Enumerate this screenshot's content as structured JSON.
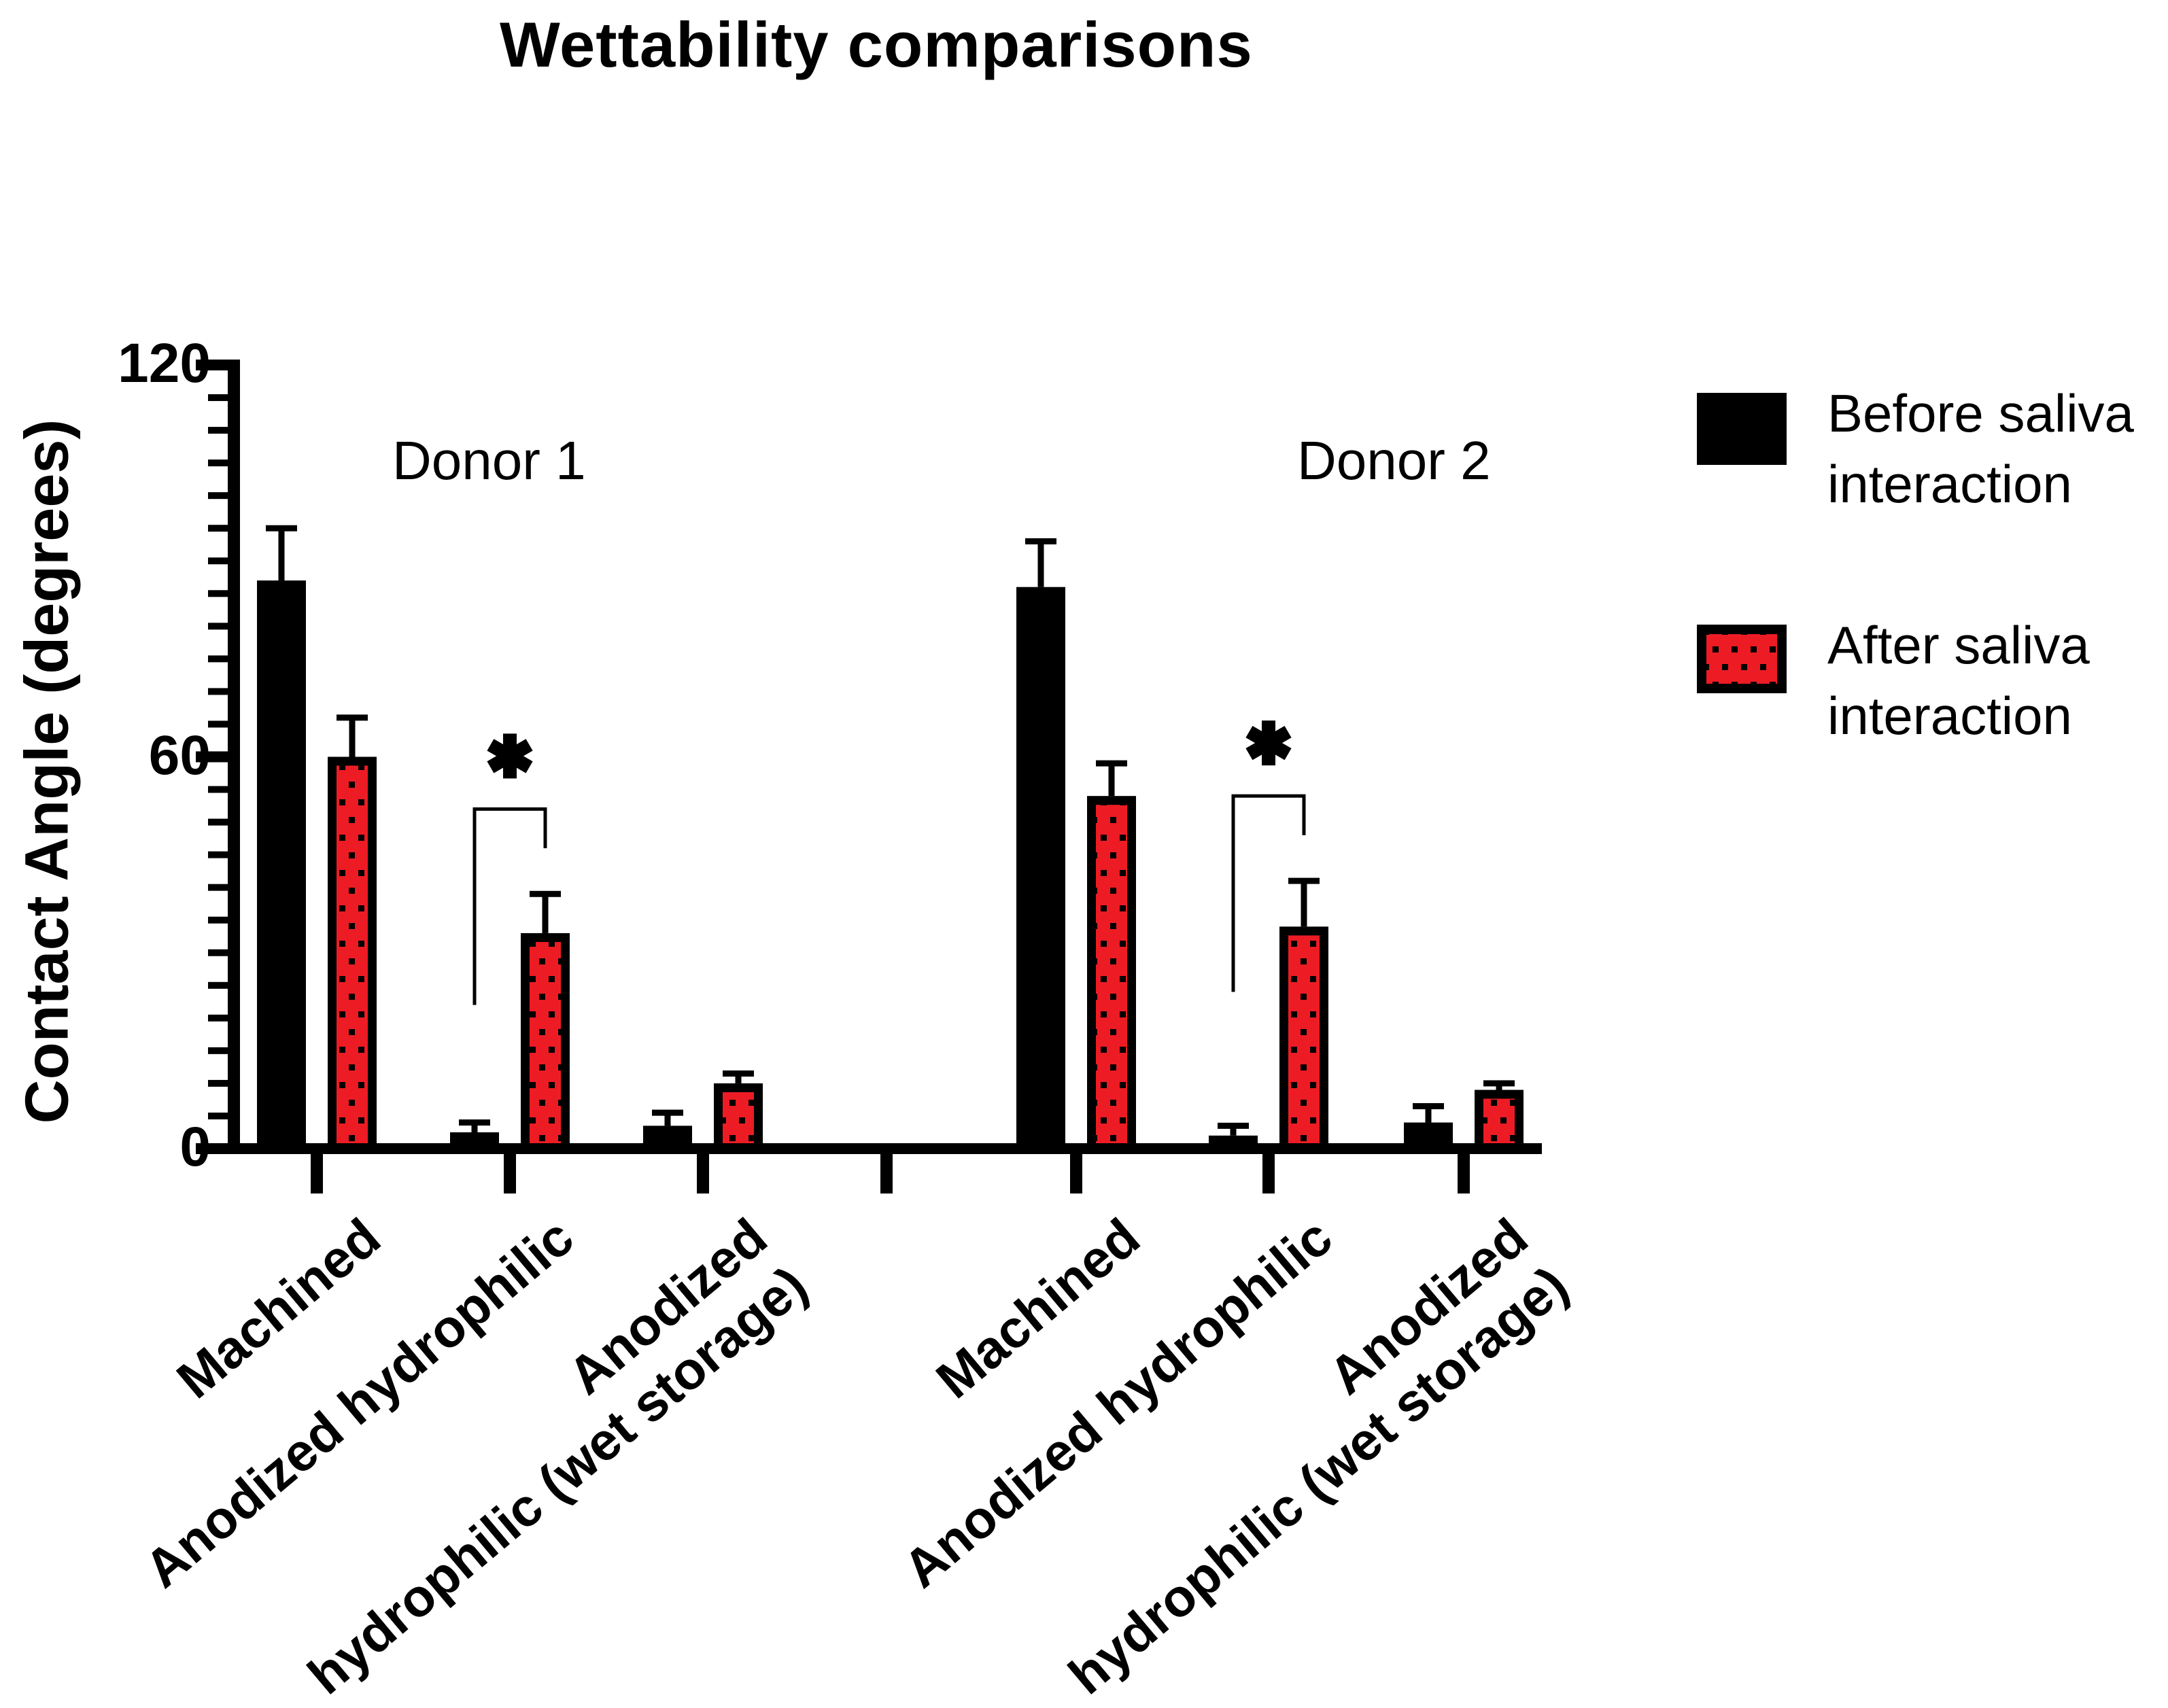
{
  "chart_data": {
    "type": "bar",
    "title": "Wettability comparisons",
    "ylabel": "Contact Angle (degrees)",
    "xlabel": "",
    "ylim": [
      0,
      120
    ],
    "yticks_major": [
      0,
      60,
      120
    ],
    "ytick_labels": [
      "0",
      "60",
      "120"
    ],
    "ytick_minor_step": 5,
    "grid": "off",
    "legend_position": "right",
    "error_bars": "sd-upper-only",
    "donor_labels": [
      "Donor 1",
      "Donor 2"
    ],
    "series": [
      {
        "name": "Before saliva interaction",
        "color": "#000000",
        "pattern": "solid"
      },
      {
        "name": "After saliva interaction",
        "color": "#ED1C24",
        "pattern": "black-dots",
        "border_color": "#000000"
      }
    ],
    "groups": [
      {
        "donor": "Donor 1",
        "category": "Machined",
        "category_lines": [
          "Machined"
        ],
        "before": {
          "mean": 87,
          "sd": 8
        },
        "after": {
          "mean": 60,
          "sd": 6
        },
        "significant": false
      },
      {
        "donor": "Donor 1",
        "category": "Anodized hydrophilic",
        "category_lines": [
          "Anodized hydrophilic"
        ],
        "before": {
          "mean": 2.5,
          "sd": 1.5
        },
        "after": {
          "mean": 33,
          "sd": 6
        },
        "significant": true,
        "sig_label": "*"
      },
      {
        "donor": "Donor 1",
        "category": "Anodized hydrophilic (wet storage)",
        "category_lines": [
          "Anodized",
          "hydrophilic (wet storage)"
        ],
        "before": {
          "mean": 3.5,
          "sd": 2
        },
        "after": {
          "mean": 10,
          "sd": 1.5
        },
        "significant": false
      },
      {
        "donor": "Donor 2",
        "category": "Machined",
        "category_lines": [
          "Machined"
        ],
        "before": {
          "mean": 86,
          "sd": 7
        },
        "after": {
          "mean": 54,
          "sd": 5
        },
        "significant": false
      },
      {
        "donor": "Donor 2",
        "category": "Anodized hydrophilic",
        "category_lines": [
          "Anodized hydrophilic"
        ],
        "before": {
          "mean": 2,
          "sd": 1.5
        },
        "after": {
          "mean": 34,
          "sd": 7
        },
        "significant": true,
        "sig_label": "*"
      },
      {
        "donor": "Donor 2",
        "category": "Anodized hydrophilic (wet storage)",
        "category_lines": [
          "Anodized",
          "hydrophilic (wet storage)"
        ],
        "before": {
          "mean": 4,
          "sd": 2.5
        },
        "after": {
          "mean": 9,
          "sd": 1
        },
        "significant": false
      }
    ]
  }
}
